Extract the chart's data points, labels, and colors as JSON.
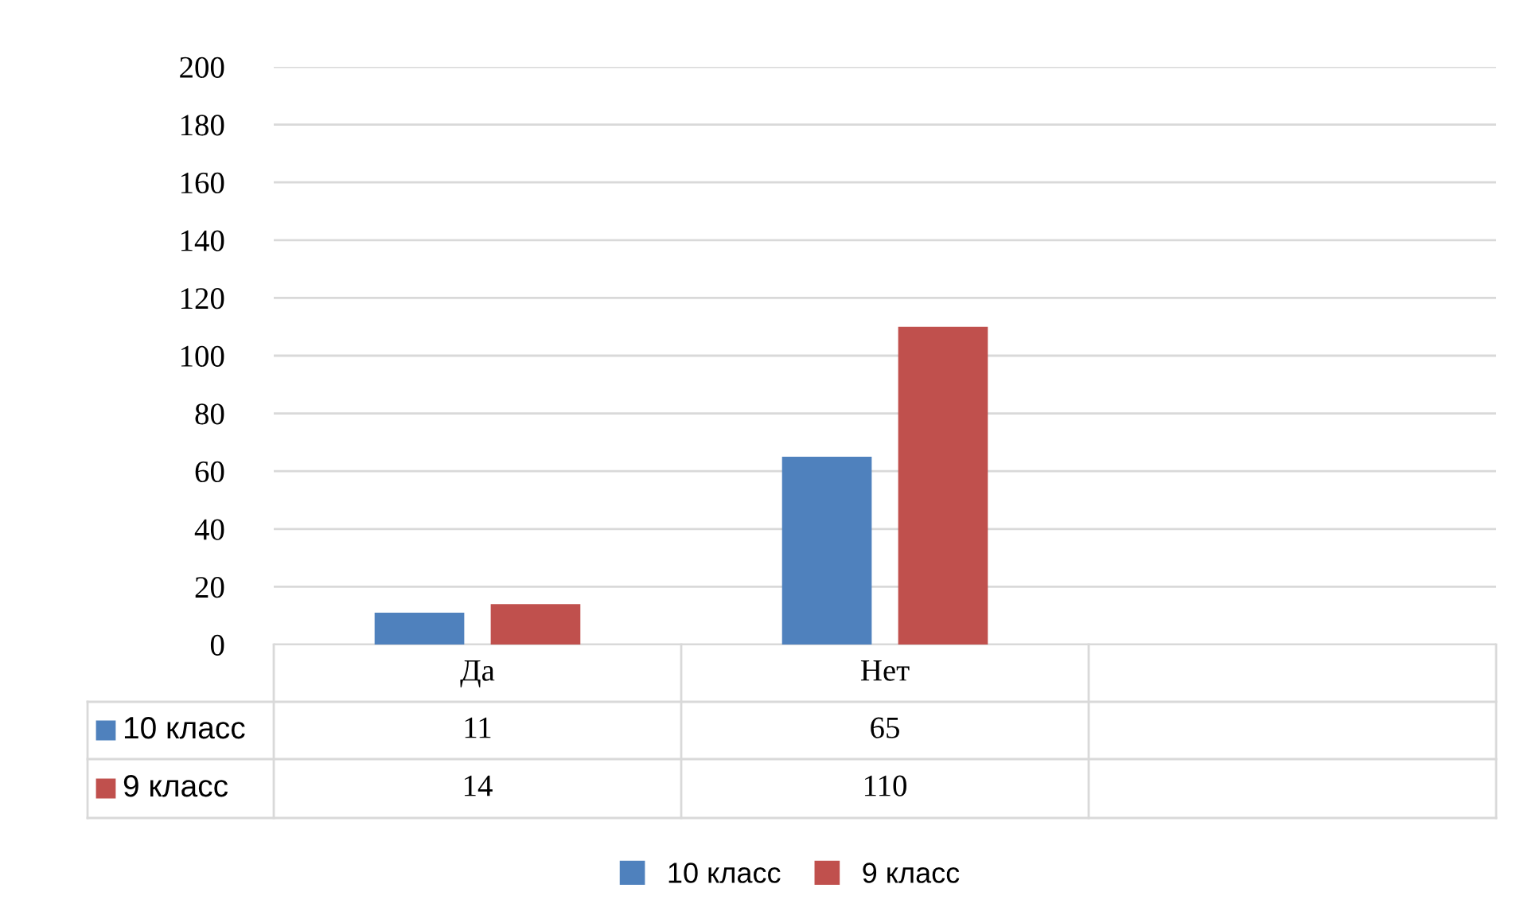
{
  "chart_data": {
    "type": "bar",
    "categories": [
      "Да",
      "Нет",
      null
    ],
    "series": [
      {
        "name": "10 класс",
        "color": "#4f81bd",
        "values": [
          11,
          65,
          null
        ]
      },
      {
        "name": "9 класс",
        "color": "#c0504d",
        "values": [
          14,
          110,
          null
        ]
      }
    ],
    "ylim": [
      0,
      200
    ],
    "yticks": [
      0,
      20,
      40,
      60,
      80,
      100,
      120,
      140,
      160,
      180,
      200
    ],
    "grid": "y",
    "legend": "bottom",
    "data_labels": true
  }
}
